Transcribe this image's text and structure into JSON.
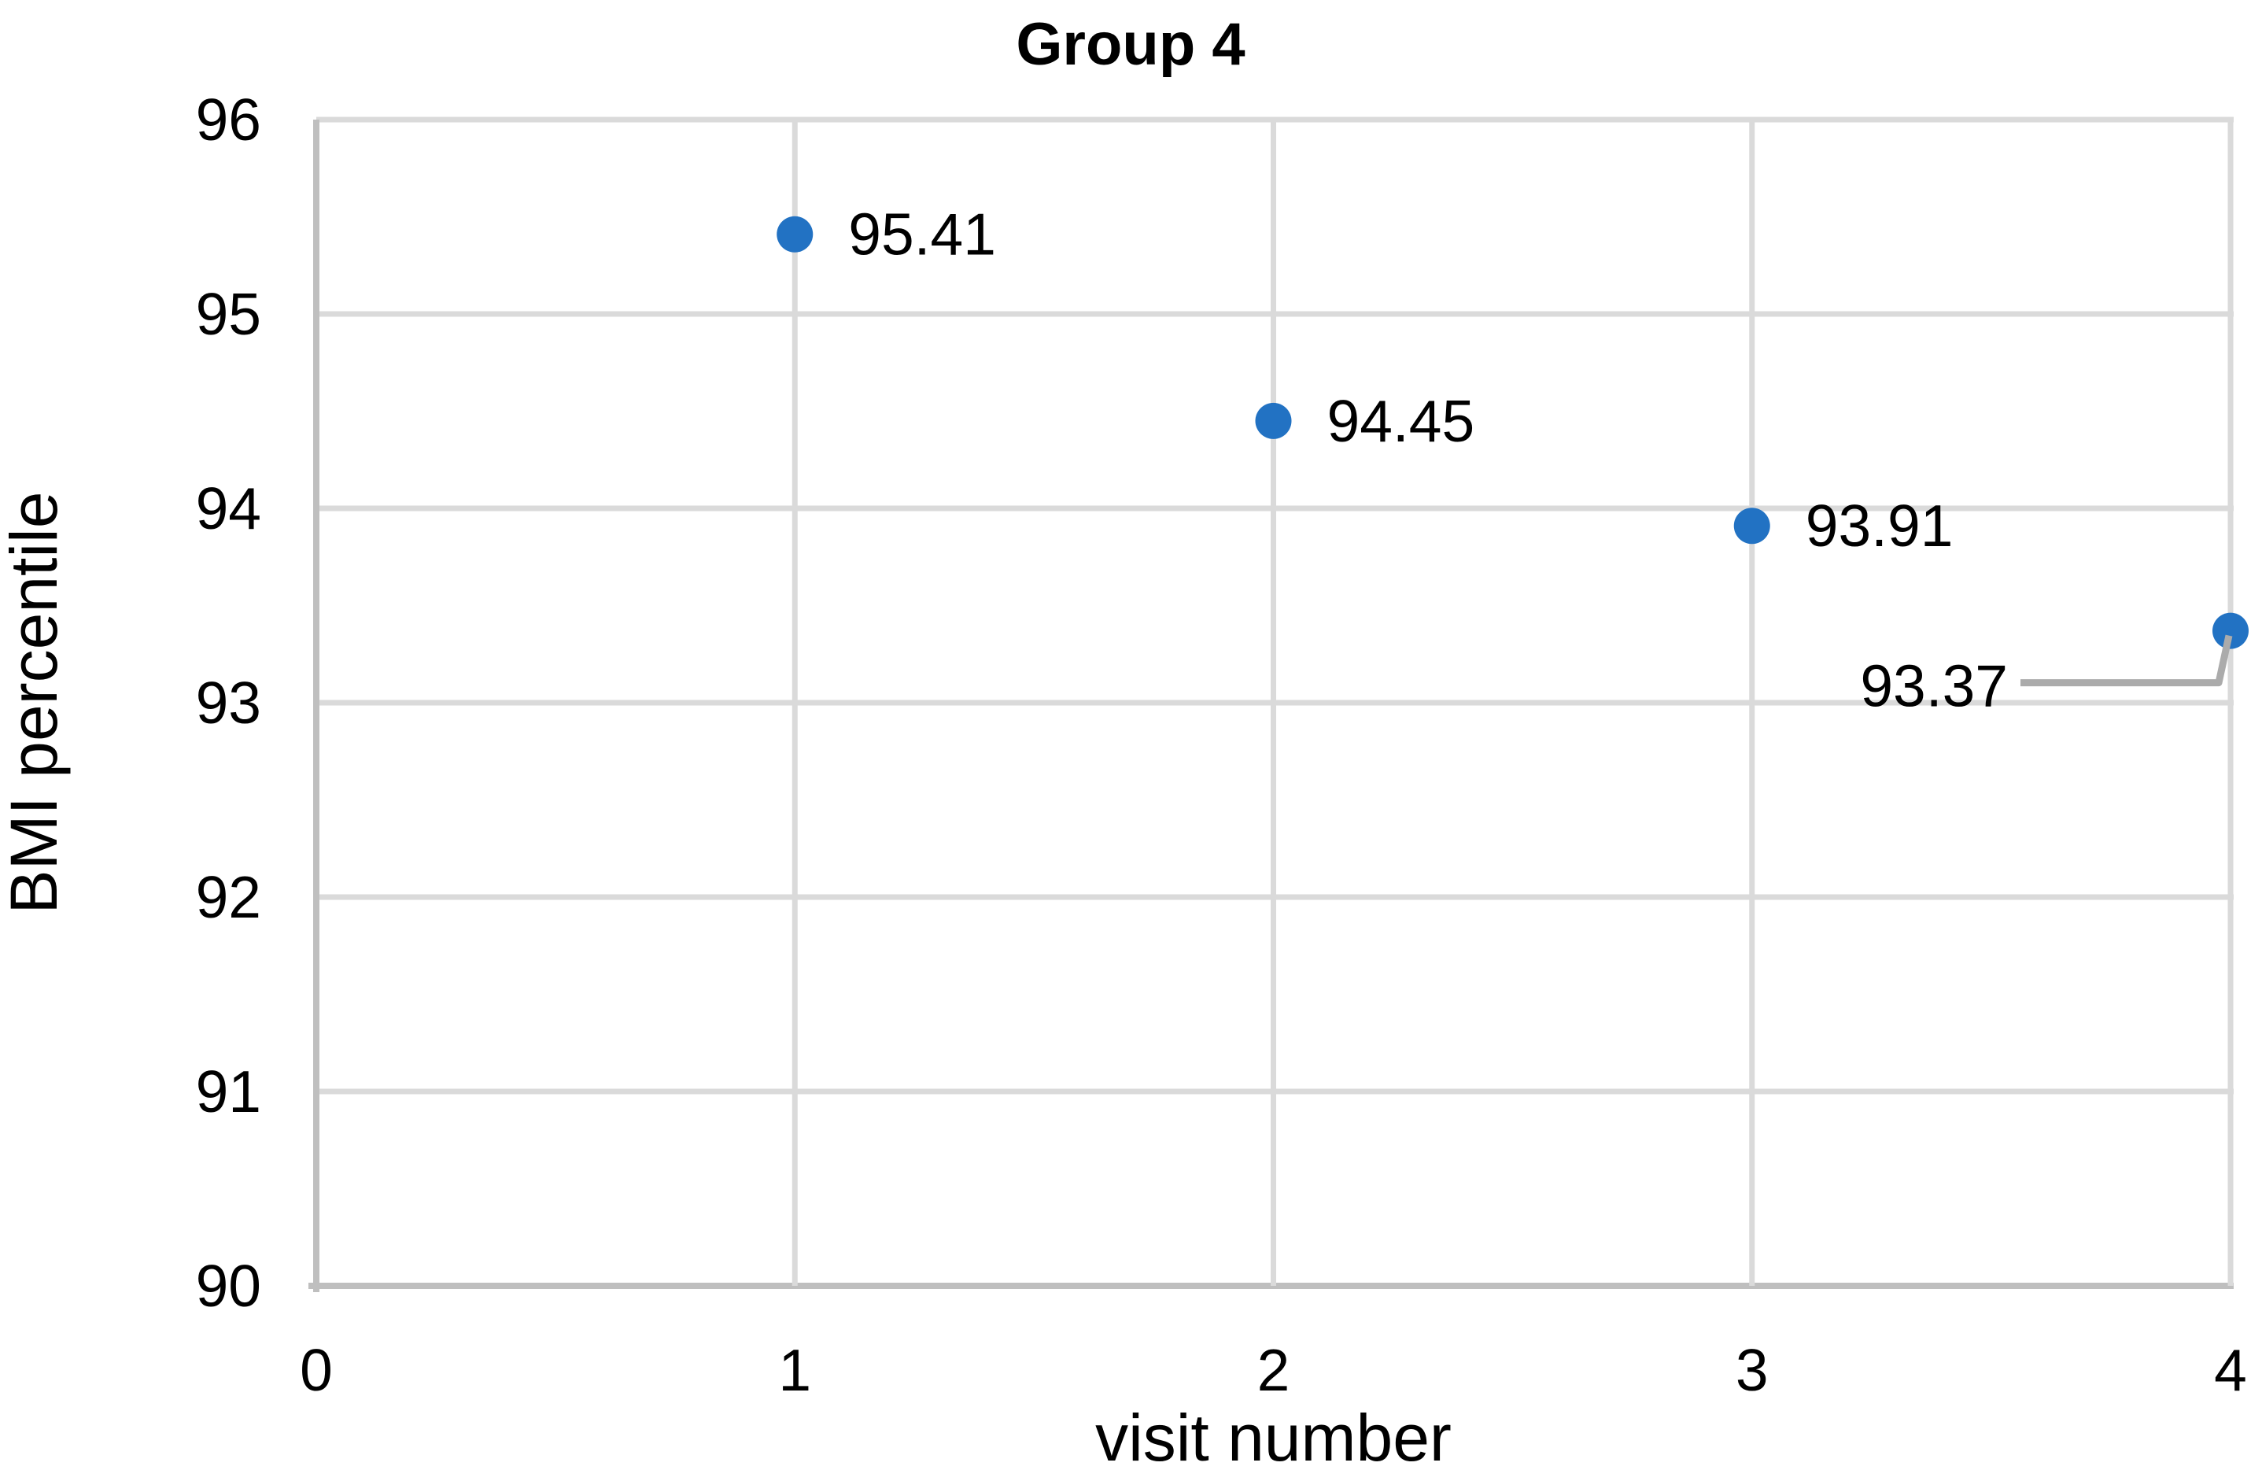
{
  "chart_data": {
    "type": "scatter",
    "title": "Group 4",
    "xlabel": "visit number",
    "ylabel": "BMI percentile",
    "x": [
      1,
      2,
      3,
      4
    ],
    "y": [
      95.41,
      94.45,
      93.91,
      93.37
    ],
    "point_labels": [
      "95.41",
      "94.45",
      "93.91",
      "93.37"
    ],
    "xlim": [
      0,
      4
    ],
    "ylim": [
      90,
      96
    ],
    "x_ticks": [
      "0",
      "1",
      "2",
      "3",
      "4"
    ],
    "y_ticks": [
      "90",
      "91",
      "92",
      "93",
      "94",
      "95",
      "96"
    ],
    "grid": true,
    "legend": false,
    "colors": {
      "marker": "#2272C3",
      "gridline": "#DADADA",
      "axis_line": "#BFBFBF",
      "leader_line": "#ABABAB",
      "text": "#000000"
    }
  }
}
